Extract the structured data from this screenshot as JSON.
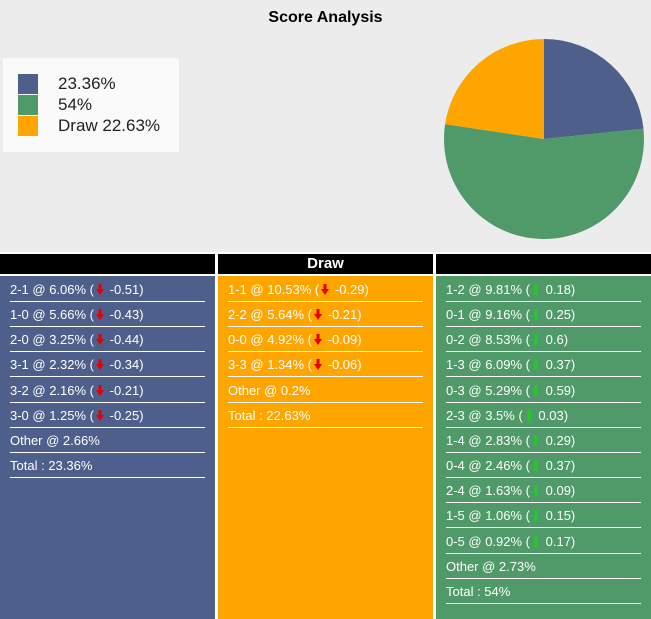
{
  "title": "Score Analysis",
  "legend": [
    {
      "label": "23.36%",
      "color": "#4e5f8c"
    },
    {
      "label": "54%",
      "color": "#4f9a68"
    },
    {
      "label": "Draw 22.63%",
      "color": "#ffa500"
    }
  ],
  "chart_data": {
    "type": "pie",
    "title": "Score Analysis",
    "slices": [
      {
        "label": "23.36%",
        "value": 23.36,
        "color": "#4e5f8c"
      },
      {
        "label": "54%",
        "value": 54,
        "color": "#4f9a68"
      },
      {
        "label": "Draw 22.63%",
        "value": 22.63,
        "color": "#ffa500"
      }
    ]
  },
  "columns": [
    {
      "header": "",
      "bg": "#4e5f8c",
      "rows": [
        {
          "text": "2-1 @ 6.06% (",
          "dir": "down",
          "change": "-0.51)"
        },
        {
          "text": "1-0 @ 5.66% (",
          "dir": "down",
          "change": "-0.43)"
        },
        {
          "text": "2-0 @ 3.25% (",
          "dir": "down",
          "change": "-0.44)"
        },
        {
          "text": "3-1 @ 2.32% (",
          "dir": "down",
          "change": "-0.34)"
        },
        {
          "text": "3-2 @ 2.16% (",
          "dir": "down",
          "change": "-0.21)"
        },
        {
          "text": "3-0 @ 1.25% (",
          "dir": "down",
          "change": "-0.25)"
        },
        {
          "text": "Other @ 2.66%"
        },
        {
          "text": "Total : 23.36%"
        }
      ]
    },
    {
      "header": "Draw",
      "bg": "#ffa500",
      "rows": [
        {
          "text": "1-1 @ 10.53% (",
          "dir": "down",
          "change": "-0.29)"
        },
        {
          "text": "2-2 @ 5.64% (",
          "dir": "down",
          "change": "-0.21)"
        },
        {
          "text": "0-0 @ 4.92% (",
          "dir": "down",
          "change": "-0.09)"
        },
        {
          "text": "3-3 @ 1.34% (",
          "dir": "down",
          "change": "-0.06)"
        },
        {
          "text": "Other @ 0.2%"
        },
        {
          "text": "Total : 22.63%"
        }
      ]
    },
    {
      "header": "",
      "bg": "#4f9a68",
      "rows": [
        {
          "text": "1-2 @ 9.81% (",
          "dir": "up",
          "change": "0.18)"
        },
        {
          "text": "0-1 @ 9.16% (",
          "dir": "up",
          "change": "0.25)"
        },
        {
          "text": "0-2 @ 8.53% (",
          "dir": "up",
          "change": "0.6)"
        },
        {
          "text": "1-3 @ 6.09% (",
          "dir": "up",
          "change": "0.37)"
        },
        {
          "text": "0-3 @ 5.29% (",
          "dir": "up",
          "change": "0.59)"
        },
        {
          "text": "2-3 @ 3.5% (",
          "dir": "up",
          "change": "0.03)"
        },
        {
          "text": "1-4 @ 2.83% (",
          "dir": "up",
          "change": "0.29)"
        },
        {
          "text": "0-4 @ 2.46% (",
          "dir": "up",
          "change": "0.37)"
        },
        {
          "text": "2-4 @ 1.63% (",
          "dir": "up",
          "change": "0.09)"
        },
        {
          "text": "1-5 @ 1.06% (",
          "dir": "up",
          "change": "0.15)"
        },
        {
          "text": "0-5 @ 0.92% (",
          "dir": "up",
          "change": "0.17)"
        },
        {
          "text": "Other @ 2.73%"
        },
        {
          "text": "Total : 54%"
        }
      ]
    }
  ]
}
